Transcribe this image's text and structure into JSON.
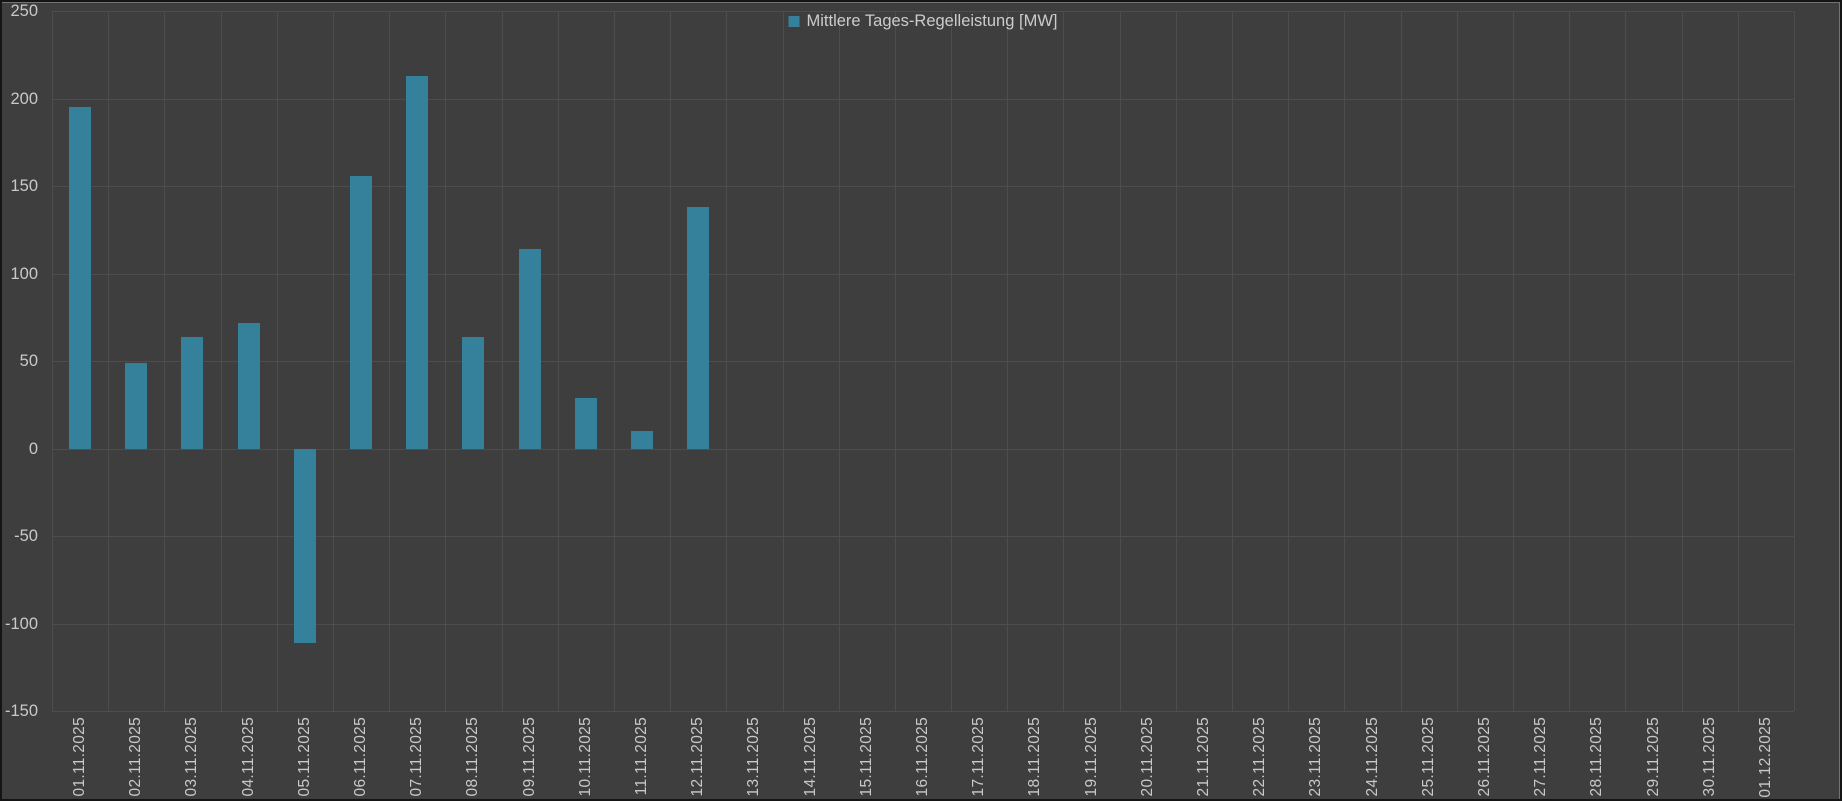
{
  "window": {
    "background_color": "#3e3e3e",
    "frame_color": "#151515"
  },
  "legend": {
    "label": "Mittlere Tages-Regelleistung [MW]"
  },
  "chart_data": {
    "type": "bar",
    "title": "",
    "xlabel": "",
    "ylabel": "",
    "legend_entries": [
      "Mittlere Tages-Regelleistung [MW]"
    ],
    "legend_position": "top-center",
    "grid": true,
    "ylim": [
      -150,
      250
    ],
    "y_ticks": [
      250,
      200,
      150,
      100,
      50,
      0,
      -50,
      -100,
      -150
    ],
    "y_tick_labels": [
      "250",
      "200",
      "150",
      "100",
      "50",
      "0",
      "-50",
      "-100",
      "-150"
    ],
    "categories": [
      "01.11.2025",
      "02.11.2025",
      "03.11.2025",
      "04.11.2025",
      "05.11.2025",
      "06.11.2025",
      "07.11.2025",
      "08.11.2025",
      "09.11.2025",
      "10.11.2025",
      "11.11.2025",
      "12.11.2025",
      "13.11.2025",
      "14.11.2025",
      "15.11.2025",
      "16.11.2025",
      "17.11.2025",
      "18.11.2025",
      "19.11.2025",
      "20.11.2025",
      "21.11.2025",
      "22.11.2025",
      "23.11.2025",
      "24.11.2025",
      "25.11.2025",
      "26.11.2025",
      "27.11.2025",
      "28.11.2025",
      "29.11.2025",
      "30.11.2025",
      "01.12.2025"
    ],
    "values": [
      195,
      49,
      64,
      72,
      -111,
      156,
      213,
      64,
      114,
      29,
      10,
      138,
      null,
      null,
      null,
      null,
      null,
      null,
      null,
      null,
      null,
      null,
      null,
      null,
      null,
      null,
      null,
      null,
      null,
      null,
      null
    ],
    "bar_color": "#35809b",
    "grid_color": "#4d4d4d",
    "text_color": "#c9c9c9",
    "background_color": "#3e3e3e"
  }
}
